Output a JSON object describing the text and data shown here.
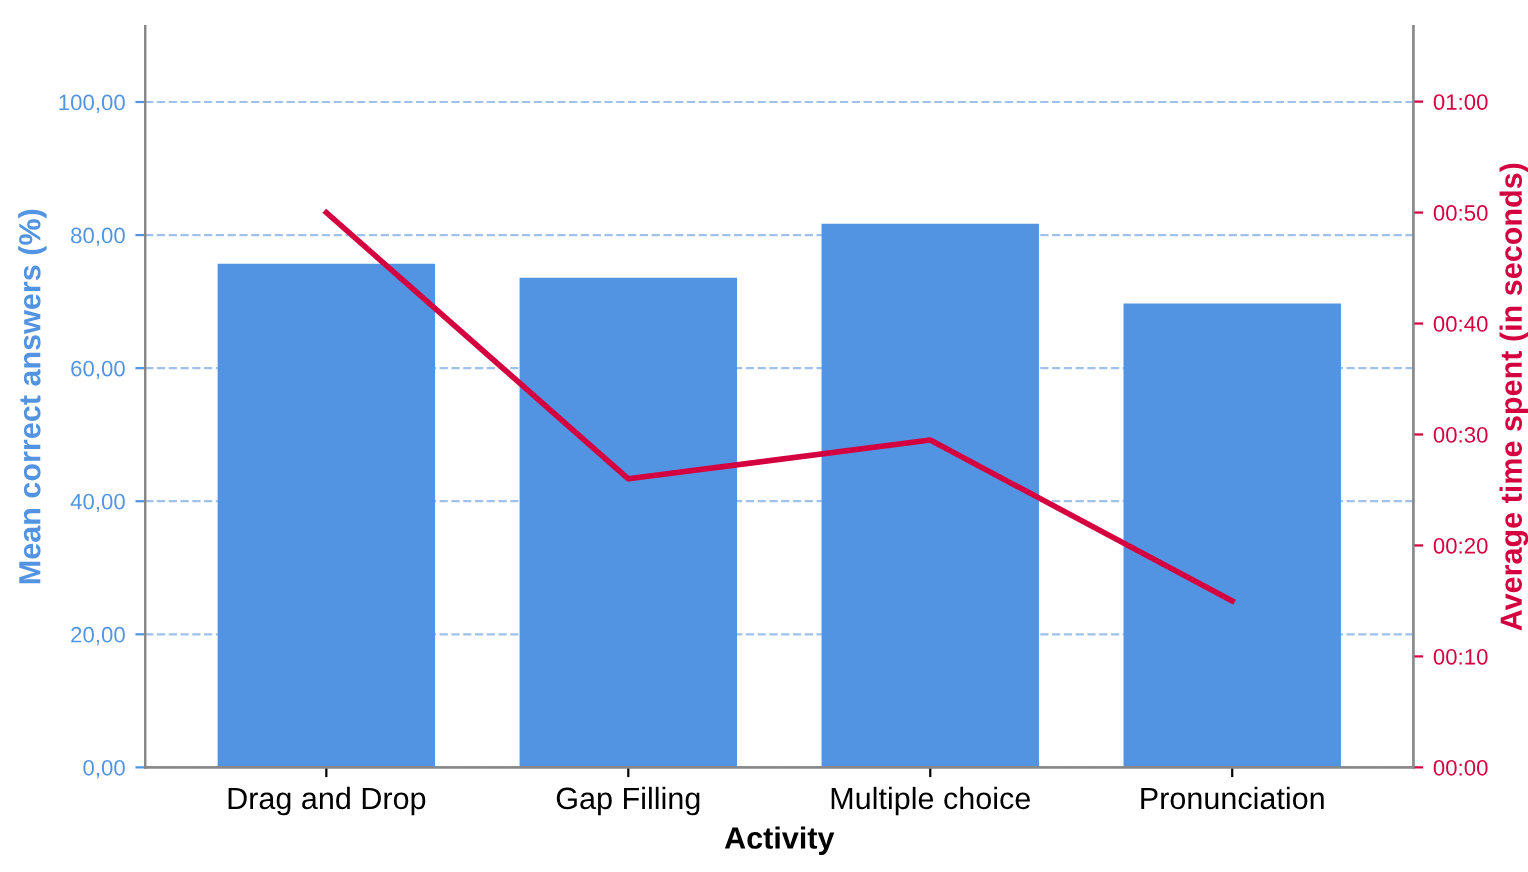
{
  "chart_data": {
    "type": "bar",
    "xlabel": "Activity",
    "ylabel": "Mean correct answers (%)",
    "y2label": "Average time spent (in seconds)",
    "categories": [
      "Drag and Drop",
      "Gap Filling",
      "Multiple choice",
      "Pronunciation"
    ],
    "series": [
      {
        "color": "#5294e2",
        "values": [
          75.7,
          73.6,
          81.7,
          69.7
        ]
      },
      {
        "type": "line",
        "axis": "y2",
        "color": "#d5003f",
        "values": [
          50,
          26,
          29.5,
          15
        ]
      }
    ],
    "ylim": [
      0,
      111.4
    ],
    "yticks": [
      {
        "value": 0,
        "label": "0,00"
      },
      {
        "value": 20,
        "label": "20,00"
      },
      {
        "value": 40,
        "label": "40,00"
      },
      {
        "value": 60,
        "label": "60,00"
      },
      {
        "value": 80,
        "label": "80,00"
      },
      {
        "value": 100,
        "label": "100,00"
      }
    ],
    "y2lim": [
      0,
      66.8
    ],
    "y2ticks": [
      {
        "value": 0,
        "label": "00:00"
      },
      {
        "value": 10,
        "label": "00:10"
      },
      {
        "value": 20,
        "label": "00:20"
      },
      {
        "value": 30,
        "label": "00:30"
      },
      {
        "value": 40,
        "label": "00:40"
      },
      {
        "value": 50,
        "label": "00:50"
      },
      {
        "value": 60,
        "label": "01:00"
      }
    ],
    "grid": "y",
    "marker": "none",
    "line_style": "solid"
  }
}
